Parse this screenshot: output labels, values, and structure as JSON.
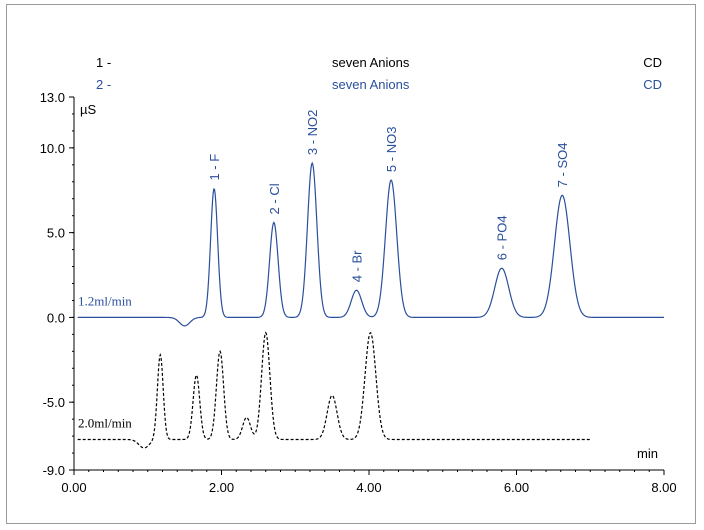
{
  "chart_data": {
    "type": "line",
    "header_rows": [
      {
        "num": "1 -",
        "name": "seven Anions",
        "det": "CD",
        "color": "#000000"
      },
      {
        "num": "2 -",
        "name": "seven Anions",
        "det": "CD",
        "color": "#2a4f9c"
      }
    ],
    "ylabel": "µS",
    "xlabel": "min",
    "xlim": [
      0,
      8
    ],
    "ylim": [
      -9,
      13
    ],
    "x_ticks": [
      "0.00",
      "2.00",
      "4.00",
      "6.00",
      "8.00"
    ],
    "y_ticks": [
      "13.0",
      "10.0",
      "5.0",
      "0.0",
      "-5.0",
      "-9.0"
    ],
    "y_tick_values": [
      13,
      10,
      5,
      0,
      -5,
      -9
    ],
    "x_tick_values": [
      0,
      2,
      4,
      6,
      8
    ],
    "series": [
      {
        "name": "1.2ml/min",
        "color": "#2a4f9c",
        "style": "solid",
        "x_start": 0.05,
        "x_end": 8.0,
        "baseline": 0.0,
        "dip": {
          "x": 1.5,
          "depth": -0.5
        },
        "peaks": [
          {
            "label": "1 - F",
            "x": 1.9,
            "height": 7.6
          },
          {
            "label": "2 - Cl",
            "x": 2.71,
            "height": 5.6
          },
          {
            "label": "3 - NO2",
            "x": 3.23,
            "height": 9.1
          },
          {
            "label": "4 - Br",
            "x": 3.83,
            "height": 1.6
          },
          {
            "label": "5 - NO3",
            "x": 4.3,
            "height": 8.1
          },
          {
            "label": "6 - PO4",
            "x": 5.8,
            "height": 2.9
          },
          {
            "label": "7 - SO4",
            "x": 6.62,
            "height": 7.2
          }
        ]
      },
      {
        "name": "2.0ml/min",
        "color": "#000000",
        "style": "dashed",
        "x_start": 0.05,
        "x_end": 7.0,
        "baseline": -7.2,
        "dip": {
          "x": 0.95,
          "depth": -0.5
        },
        "peaks": [
          {
            "x": 1.17,
            "height": -2.2
          },
          {
            "x": 1.66,
            "height": -3.4
          },
          {
            "x": 1.98,
            "height": -2.0
          },
          {
            "x": 2.34,
            "height": -5.9
          },
          {
            "x": 2.6,
            "height": -0.9
          },
          {
            "x": 3.5,
            "height": -4.6
          },
          {
            "x": 4.02,
            "height": -0.9
          }
        ]
      }
    ]
  }
}
